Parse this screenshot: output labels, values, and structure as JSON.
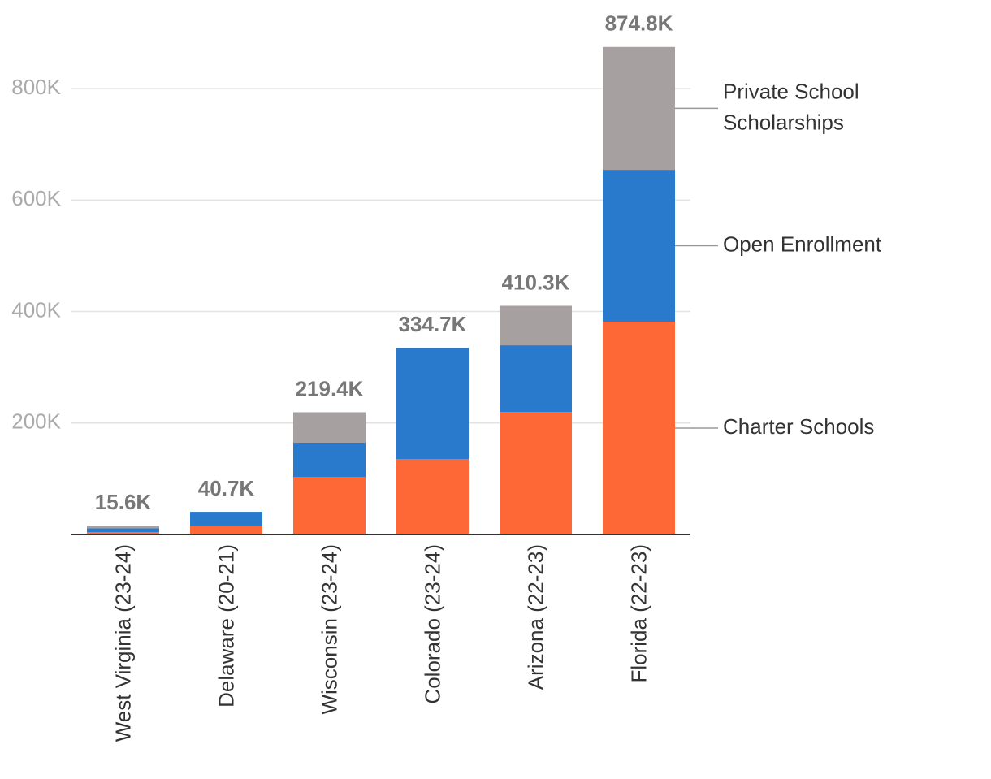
{
  "chart_data": {
    "type": "stacked_bar",
    "categories": [
      "West Virginia (23-24)",
      "Delaware (20-21)",
      "Wisconsin (23-24)",
      "Colorado (23-24)",
      "Arizona (22-23)",
      "Florida (22-23)"
    ],
    "series": [
      {
        "name": "Charter Schools",
        "color": "#fe6836",
        "values": [
          4000,
          14600,
          103500,
          135500,
          220000,
          381800
        ]
      },
      {
        "name": "Open Enrollment",
        "color": "#2979cc",
        "values": [
          7000,
          26100,
          61200,
          199200,
          119500,
          272500
        ]
      },
      {
        "name": "Private School Scholarships",
        "color": "#a6a0a1",
        "values": [
          4600,
          0,
          54700,
          0,
          70800,
          220500
        ]
      }
    ],
    "totals": [
      15600,
      40700,
      219400,
      334700,
      410300,
      874800
    ],
    "total_labels": [
      "15.6K",
      "40.7K",
      "219.4K",
      "334.7K",
      "410.3K",
      "874.8K"
    ],
    "ylim": [
      0,
      900000
    ],
    "yticks": [
      {
        "value": 200000,
        "label": "200K"
      },
      {
        "value": 400000,
        "label": "400K"
      },
      {
        "value": 600000,
        "label": "600K"
      },
      {
        "value": 800000,
        "label": "800K"
      }
    ],
    "grid": true
  }
}
